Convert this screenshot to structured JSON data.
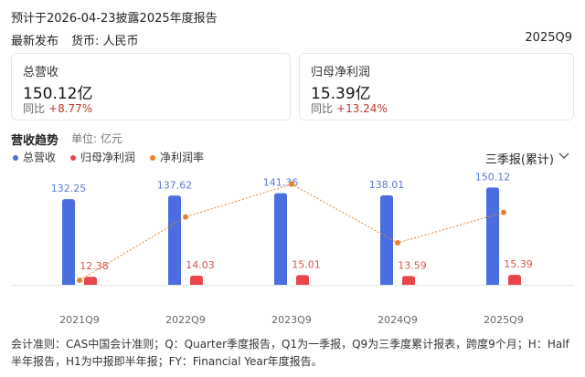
{
  "header": {
    "notice": "预计于2026-04-23披露2025年度报告",
    "latest": "最新发布",
    "currency": "货币: 人民币",
    "period": "2025Q9"
  },
  "cards": [
    {
      "title": "总营收",
      "value": "150.12亿",
      "yoy_label": "同比",
      "yoy": "+8.77%"
    },
    {
      "title": "归母净利润",
      "value": "15.39亿",
      "yoy_label": "同比",
      "yoy": "+13.24%"
    }
  ],
  "section": {
    "title": "营收趋势",
    "unit": "单位: 亿元",
    "selector": "三季报(累计)"
  },
  "chart_data": {
    "type": "bar",
    "categories": [
      "2021Q9",
      "2022Q9",
      "2023Q9",
      "2024Q9",
      "2025Q9"
    ],
    "series": [
      {
        "name": "总营收",
        "color": "#4a6ee0",
        "label_color": "#5b7ad6",
        "values": [
          132.25,
          137.62,
          141.36,
          138.01,
          150.12
        ]
      },
      {
        "name": "归母净利润",
        "color": "#e8464a",
        "label_color": "#d9534f",
        "values": [
          12.38,
          14.03,
          15.01,
          13.59,
          15.39
        ]
      },
      {
        "name": "净利润率",
        "color": "#e8822a",
        "type": "line",
        "axis": "y2",
        "values": [
          9.36,
          10.19,
          10.62,
          9.85,
          10.25
        ]
      }
    ],
    "ylim": [
      0,
      200
    ],
    "y2lim": [
      9.3,
      11.0
    ]
  },
  "footer": "会计准则：CAS中国会计准则；Q：Quarter季度报告，Q1为一季报，Q9为三季度累计报表，跨度9个月；H：Half半年报告，H1为中报即半年报；FY：Financial Year年度报告。"
}
